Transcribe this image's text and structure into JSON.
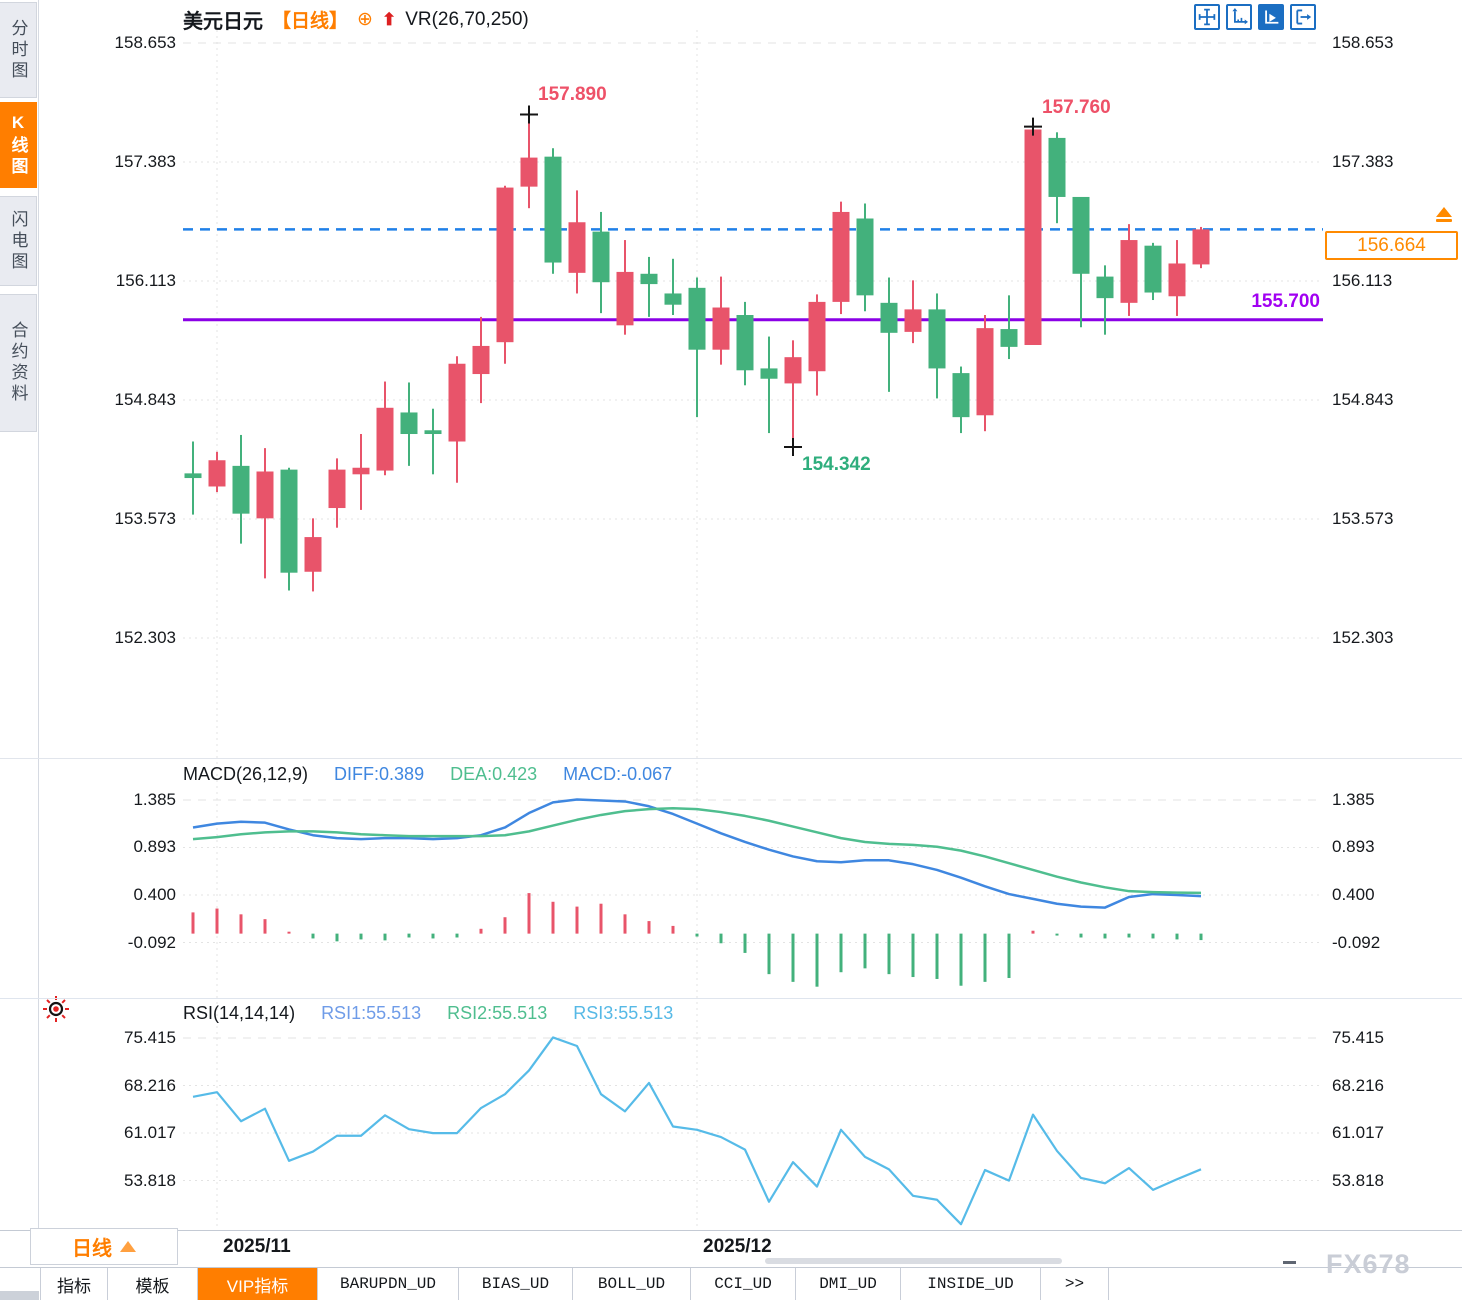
{
  "app": {
    "watermark": "FX678"
  },
  "sidebar": {
    "items": [
      {
        "label": "分时图",
        "active": false
      },
      {
        "label": "K线图",
        "active": true
      },
      {
        "label": "闪电图",
        "active": false
      },
      {
        "label": "合约资料",
        "active": false
      }
    ]
  },
  "header": {
    "symbol": "美元日元",
    "period_tag": "【日线】",
    "plus_icon": "⊕",
    "up_arrow_icon": "⬆",
    "indicator": "VR(26,70,250)"
  },
  "toolbar": {
    "icons": [
      "crosshair-icon",
      "axes-scale-icon",
      "pointer-axis-icon",
      "exit-right-icon"
    ]
  },
  "price_panel": {
    "current_price_label": "156.664",
    "support_label": "155.700"
  },
  "macd_panel": {
    "title": "MACD(26,12,9)",
    "diff_label": "DIFF:0.389",
    "dea_label": "DEA:0.423",
    "macd_label": "MACD:-0.067"
  },
  "rsi_panel": {
    "title": "RSI(14,14,14)",
    "rsi1_label": "RSI1:55.513",
    "rsi2_label": "RSI2:55.513",
    "rsi3_label": "RSI3:55.513"
  },
  "x_axis": {
    "period_button": "日线"
  },
  "bottom_tabs": {
    "items": [
      {
        "label": "指标",
        "active": false,
        "mono": false
      },
      {
        "label": "模板",
        "active": false,
        "mono": false
      },
      {
        "label": "VIP指标",
        "active": true,
        "mono": false
      },
      {
        "label": "BARUPDN_UD",
        "active": false,
        "mono": true
      },
      {
        "label": "BIAS_UD",
        "active": false,
        "mono": true
      },
      {
        "label": "BOLL_UD",
        "active": false,
        "mono": true
      },
      {
        "label": "CCI_UD",
        "active": false,
        "mono": true
      },
      {
        "label": "DMI_UD",
        "active": false,
        "mono": true
      },
      {
        "label": "INSIDE_UD",
        "active": false,
        "mono": true
      },
      {
        "label": ">>",
        "active": false,
        "mono": true
      }
    ]
  },
  "colors": {
    "up_red": "#e8546a",
    "down_green": "#43b17c",
    "accent_orange": "#ff7e00",
    "diff_blue": "#3f87e0",
    "dea_green": "#4fbe8f",
    "rsi_blue": "#56bbe8",
    "support_purple": "#8a00e6",
    "current_line_blue": "#2080e8",
    "annotation_red": "#ee5168",
    "annotation_green": "#2fae7d",
    "icon_blue": "#1b6ec2"
  },
  "chart_data": {
    "type": "candlestick",
    "symbol": "美元日元",
    "period": "日线",
    "price_axis_ticks": [
      158.653,
      157.383,
      156.113,
      154.843,
      153.573,
      152.303
    ],
    "current_price": 156.664,
    "support_line": 155.7,
    "month_ticks": [
      {
        "label": "2025/11",
        "index": 1
      },
      {
        "label": "2025/12",
        "index": 21
      }
    ],
    "annotations": [
      {
        "type": "high",
        "value": 157.89,
        "label": "157.890",
        "index": 14
      },
      {
        "type": "high",
        "value": 157.76,
        "label": "157.760",
        "index": 35
      },
      {
        "type": "low",
        "value": 154.342,
        "label": "154.342",
        "index": 25
      }
    ],
    "candles": [
      [
        154.06,
        154.4,
        153.62,
        154.01
      ],
      [
        153.92,
        154.29,
        153.86,
        154.2
      ],
      [
        154.14,
        154.47,
        153.31,
        153.63
      ],
      [
        153.58,
        154.33,
        152.94,
        154.08
      ],
      [
        154.1,
        154.12,
        152.81,
        153.0
      ],
      [
        153.01,
        153.58,
        152.8,
        153.38
      ],
      [
        153.69,
        154.22,
        153.48,
        154.1
      ],
      [
        154.05,
        154.48,
        153.67,
        154.12
      ],
      [
        154.09,
        155.04,
        154.04,
        154.76
      ],
      [
        154.71,
        155.03,
        154.14,
        154.48
      ],
      [
        154.52,
        154.75,
        154.05,
        154.48
      ],
      [
        154.4,
        155.31,
        153.96,
        155.23
      ],
      [
        155.12,
        155.73,
        154.81,
        155.42
      ],
      [
        155.46,
        157.13,
        155.23,
        157.11
      ],
      [
        157.12,
        157.89,
        156.89,
        157.43
      ],
      [
        157.44,
        157.53,
        156.19,
        156.31
      ],
      [
        156.2,
        157.08,
        155.98,
        156.74
      ],
      [
        156.64,
        156.85,
        155.77,
        156.1
      ],
      [
        155.64,
        156.55,
        155.54,
        156.21
      ],
      [
        156.19,
        156.37,
        155.73,
        156.08
      ],
      [
        155.98,
        156.35,
        155.75,
        155.86
      ],
      [
        156.04,
        156.15,
        154.66,
        155.38
      ],
      [
        155.38,
        156.16,
        155.22,
        155.83
      ],
      [
        155.75,
        155.89,
        155.0,
        155.16
      ],
      [
        155.18,
        155.52,
        154.49,
        155.07
      ],
      [
        155.02,
        155.48,
        154.34,
        155.3
      ],
      [
        155.15,
        155.97,
        154.89,
        155.89
      ],
      [
        155.89,
        156.96,
        155.76,
        156.85
      ],
      [
        156.78,
        156.94,
        155.79,
        155.96
      ],
      [
        155.88,
        156.15,
        154.93,
        155.56
      ],
      [
        155.57,
        156.12,
        155.45,
        155.81
      ],
      [
        155.81,
        155.98,
        154.86,
        155.18
      ],
      [
        155.13,
        155.2,
        154.49,
        154.66
      ],
      [
        154.68,
        155.75,
        154.51,
        155.61
      ],
      [
        155.6,
        155.96,
        155.28,
        155.41
      ],
      [
        155.43,
        157.76,
        155.43,
        157.73
      ],
      [
        157.64,
        157.7,
        156.73,
        157.01
      ],
      [
        157.01,
        157.01,
        155.62,
        156.19
      ],
      [
        156.16,
        156.28,
        155.54,
        155.93
      ],
      [
        155.88,
        156.72,
        155.74,
        156.55
      ],
      [
        156.49,
        156.52,
        155.91,
        155.99
      ],
      [
        155.95,
        156.55,
        155.74,
        156.3
      ],
      [
        156.29,
        156.69,
        156.25,
        156.664
      ]
    ],
    "macd": {
      "params": "26,12,9",
      "diff_value": 0.389,
      "dea_value": 0.423,
      "macd_value": -0.067,
      "ticks": [
        1.385,
        0.893,
        0.4,
        -0.092
      ],
      "diff": [
        1.1,
        1.14,
        1.16,
        1.15,
        1.08,
        1.02,
        0.99,
        0.98,
        0.99,
        0.99,
        0.98,
        0.99,
        1.02,
        1.1,
        1.25,
        1.36,
        1.39,
        1.38,
        1.37,
        1.32,
        1.24,
        1.14,
        1.04,
        0.95,
        0.87,
        0.8,
        0.75,
        0.74,
        0.76,
        0.76,
        0.72,
        0.66,
        0.58,
        0.49,
        0.41,
        0.36,
        0.31,
        0.28,
        0.27,
        0.38,
        0.41,
        0.4,
        0.389
      ],
      "dea": [
        0.98,
        1.0,
        1.03,
        1.05,
        1.06,
        1.06,
        1.05,
        1.03,
        1.02,
        1.01,
        1.01,
        1.01,
        1.01,
        1.02,
        1.06,
        1.12,
        1.18,
        1.23,
        1.27,
        1.29,
        1.3,
        1.29,
        1.26,
        1.22,
        1.17,
        1.11,
        1.05,
        0.99,
        0.95,
        0.93,
        0.92,
        0.9,
        0.86,
        0.8,
        0.73,
        0.66,
        0.59,
        0.53,
        0.48,
        0.44,
        0.43,
        0.425,
        0.423
      ],
      "hist": [
        0.22,
        0.26,
        0.2,
        0.15,
        0.02,
        -0.05,
        -0.08,
        -0.06,
        -0.07,
        -0.04,
        -0.05,
        -0.04,
        0.05,
        0.17,
        0.42,
        0.33,
        0.28,
        0.31,
        0.2,
        0.13,
        0.08,
        -0.03,
        -0.1,
        -0.2,
        -0.42,
        -0.5,
        -0.55,
        -0.4,
        -0.36,
        -0.42,
        -0.45,
        -0.47,
        -0.54,
        -0.5,
        -0.46,
        0.03,
        -0.02,
        -0.04,
        -0.05,
        -0.04,
        -0.05,
        -0.06,
        -0.067
      ]
    },
    "rsi": {
      "params": "14,14,14",
      "rsi1_value": 55.513,
      "rsi2_value": 55.513,
      "rsi3_value": 55.513,
      "ticks": [
        75.415,
        68.216,
        61.017,
        53.818
      ],
      "values": [
        66.5,
        67.2,
        62.8,
        64.7,
        56.8,
        58.2,
        60.6,
        60.6,
        63.7,
        61.6,
        61.0,
        61.0,
        64.8,
        66.9,
        70.5,
        75.5,
        74.2,
        66.9,
        64.3,
        68.6,
        62.0,
        61.5,
        60.4,
        58.5,
        50.6,
        56.6,
        52.9,
        61.5,
        57.4,
        55.5,
        51.5,
        50.9,
        47.2,
        55.4,
        53.8,
        63.8,
        58.3,
        54.2,
        53.4,
        55.7,
        52.4,
        54.0,
        55.513
      ]
    }
  }
}
